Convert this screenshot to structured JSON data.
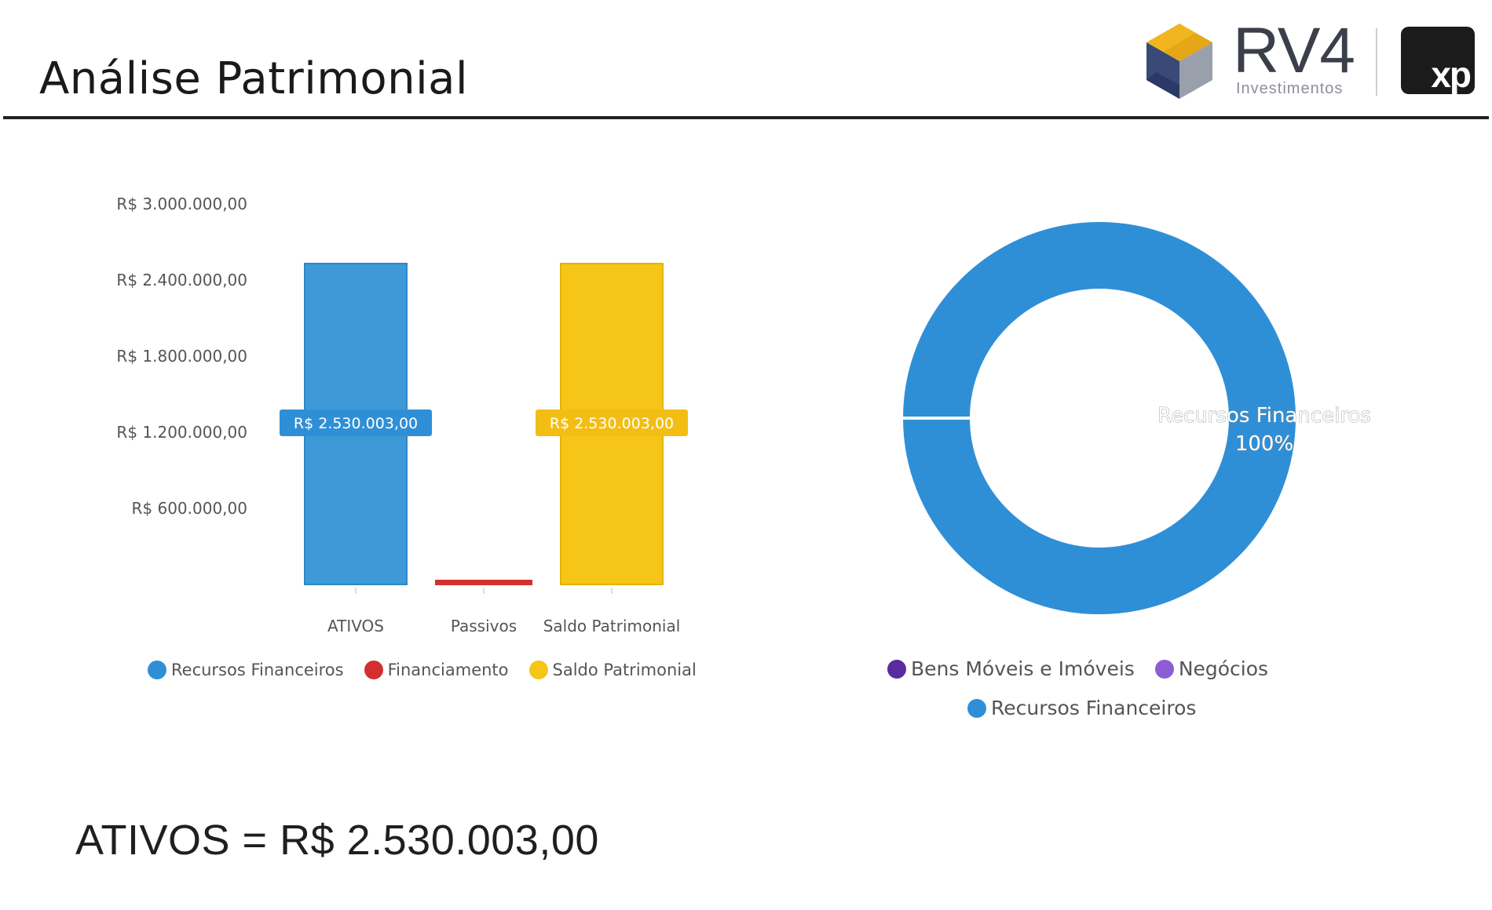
{
  "header": {
    "title": "Análise Patrimonial",
    "logo_rv4_text": "RV4",
    "logo_rv4_sub": "Investimentos",
    "logo_xp_text": "xp"
  },
  "chart_data": [
    {
      "type": "bar",
      "categories": [
        "ATIVOS",
        "Passivos",
        "Saldo Patrimonial"
      ],
      "values": [
        2530003,
        0,
        2530003
      ],
      "value_labels": [
        "R$ 2.530.003,00",
        "",
        "R$ 2.530.003,00"
      ],
      "colors": [
        "#3d9ad6",
        "#d32f2f",
        "#f5c518"
      ],
      "yticks": [
        "R$ 3.000.000,00",
        "R$ 2.400.000,00",
        "R$ 1.800.000,00",
        "R$ 1.200.000,00",
        "R$ 600.000,00"
      ],
      "ytick_values": [
        3000000,
        2400000,
        1800000,
        1200000,
        600000
      ],
      "ylim": [
        0,
        3000000
      ],
      "legend": [
        {
          "label": "Recursos Financeiros",
          "color": "#2f8fd6"
        },
        {
          "label": "Financiamento",
          "color": "#d32f2f"
        },
        {
          "label": "Saldo Patrimonial",
          "color": "#f5c518"
        }
      ],
      "legend_position": "bottom"
    },
    {
      "type": "pie",
      "subtype": "donut",
      "slices": [
        {
          "label": "Bens Móveis e Imóveis",
          "value": 0,
          "color": "#5a2ca0"
        },
        {
          "label": "Negócios",
          "value": 0,
          "color": "#8e5cd4"
        },
        {
          "label": "Recursos Financeiros",
          "value": 100,
          "color": "#2f8fd6"
        }
      ],
      "data_label": "Recursos Financeiros",
      "data_label_pct": "100%",
      "legend_position": "bottom"
    }
  ],
  "summary": {
    "text": "ATIVOS = R$ 2.530.003,00"
  }
}
